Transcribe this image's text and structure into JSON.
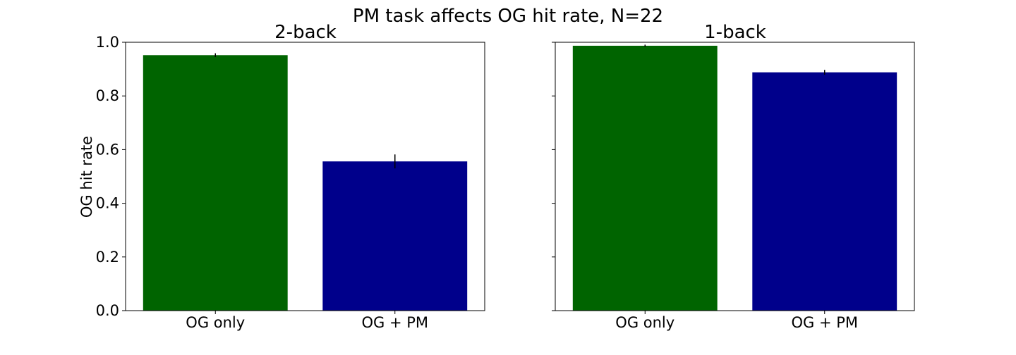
{
  "figure": {
    "suptitle": "PM task affects OG hit rate, N=22"
  },
  "chart_data": [
    {
      "type": "bar",
      "title": "2-back",
      "xlabel": "",
      "ylabel": "OG hit rate",
      "categories": [
        "OG only",
        "OG + PM"
      ],
      "values": [
        0.952,
        0.556
      ],
      "errors": [
        0.007,
        0.026
      ],
      "colors": [
        "#006400",
        "#00008b"
      ],
      "ylim": [
        0,
        1.0
      ],
      "yticks": [
        0.0,
        0.2,
        0.4,
        0.6,
        0.8,
        1.0
      ],
      "ytick_labels": [
        "0.0",
        "0.2",
        "0.4",
        "0.6",
        "0.8",
        "1.0"
      ],
      "grid": false,
      "legend": "none"
    },
    {
      "type": "bar",
      "title": "1-back",
      "xlabel": "",
      "ylabel": "",
      "categories": [
        "OG only",
        "OG + PM"
      ],
      "values": [
        0.987,
        0.888
      ],
      "errors": [
        0.004,
        0.009
      ],
      "colors": [
        "#006400",
        "#00008b"
      ],
      "ylim": [
        0,
        1.0
      ],
      "yticks": [
        0.0,
        0.2,
        0.4,
        0.6,
        0.8,
        1.0
      ],
      "ytick_labels": [
        "",
        "",
        "",
        "",
        "",
        ""
      ],
      "grid": false,
      "legend": "none"
    }
  ]
}
